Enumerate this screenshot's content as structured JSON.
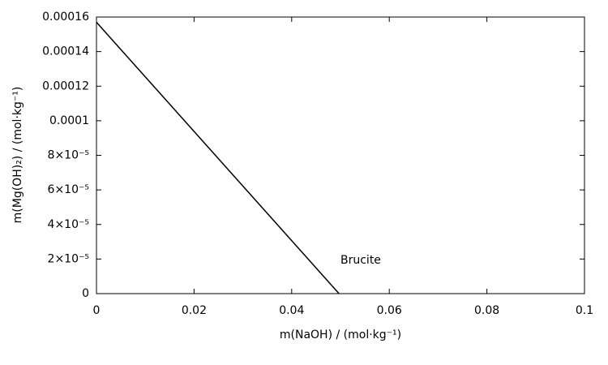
{
  "chart_data": {
    "type": "line",
    "xlabel": "m(NaOH) / (mol·kg⁻¹)",
    "ylabel": "m(Mg(OH)₂) / (mol·kg⁻¹)",
    "annotation": "Brucite",
    "x": [
      0,
      0.0497
    ],
    "series": [
      {
        "color": "#000000",
        "values": [
          0.000157,
          0
        ]
      }
    ],
    "xlim": [
      0,
      0.1
    ],
    "xticks": [
      0,
      0.02,
      0.04,
      0.06,
      0.08,
      0.1
    ],
    "ylim": [
      0,
      0.00016
    ],
    "yticks": [
      0,
      {
        "value": 2e-05,
        "label": "2×10⁻⁵"
      },
      {
        "value": 4e-05,
        "label": "4×10⁻⁵"
      },
      {
        "value": 6e-05,
        "label": "6×10⁻⁵"
      },
      {
        "value": 8e-05,
        "label": "8×10⁻⁵"
      },
      0.0001,
      0.00012,
      0.00014,
      0.00016
    ]
  }
}
